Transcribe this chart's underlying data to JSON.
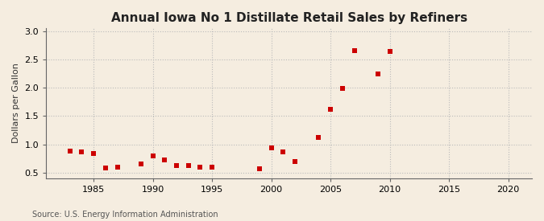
{
  "title": "Annual Iowa No 1 Distillate Retail Sales by Refiners",
  "ylabel": "Dollars per Gallon",
  "source": "Source: U.S. Energy Information Administration",
  "fig_background_color": "#f5ede0",
  "plot_background_color": "#f5ede0",
  "data": [
    {
      "year": 1983,
      "value": 0.88
    },
    {
      "year": 1984,
      "value": 0.87
    },
    {
      "year": 1985,
      "value": 0.84
    },
    {
      "year": 1986,
      "value": 0.58
    },
    {
      "year": 1987,
      "value": 0.59
    },
    {
      "year": 1989,
      "value": 0.65
    },
    {
      "year": 1990,
      "value": 0.8
    },
    {
      "year": 1991,
      "value": 0.73
    },
    {
      "year": 1992,
      "value": 0.62
    },
    {
      "year": 1993,
      "value": 0.62
    },
    {
      "year": 1994,
      "value": 0.6
    },
    {
      "year": 1995,
      "value": 0.6
    },
    {
      "year": 1999,
      "value": 0.57
    },
    {
      "year": 2000,
      "value": 0.93
    },
    {
      "year": 2001,
      "value": 0.87
    },
    {
      "year": 2002,
      "value": 0.7
    },
    {
      "year": 2004,
      "value": 1.12
    },
    {
      "year": 2005,
      "value": 1.62
    },
    {
      "year": 2006,
      "value": 1.99
    },
    {
      "year": 2007,
      "value": 2.66
    },
    {
      "year": 2009,
      "value": 2.24
    },
    {
      "year": 2010,
      "value": 2.64
    }
  ],
  "marker_color": "#cc0000",
  "marker_size": 25,
  "xlim": [
    1981,
    2022
  ],
  "ylim": [
    0.4,
    3.05
  ],
  "xticks": [
    1985,
    1990,
    1995,
    2000,
    2005,
    2010,
    2015,
    2020
  ],
  "yticks": [
    0.5,
    1.0,
    1.5,
    2.0,
    2.5,
    3.0
  ],
  "ytick_labels": [
    "0.5",
    "1.0",
    "1.5",
    "2.0",
    "2.5",
    "3.0"
  ],
  "grid_color": "#bbbbbb",
  "title_fontsize": 11,
  "label_fontsize": 8,
  "tick_fontsize": 8,
  "source_fontsize": 7
}
